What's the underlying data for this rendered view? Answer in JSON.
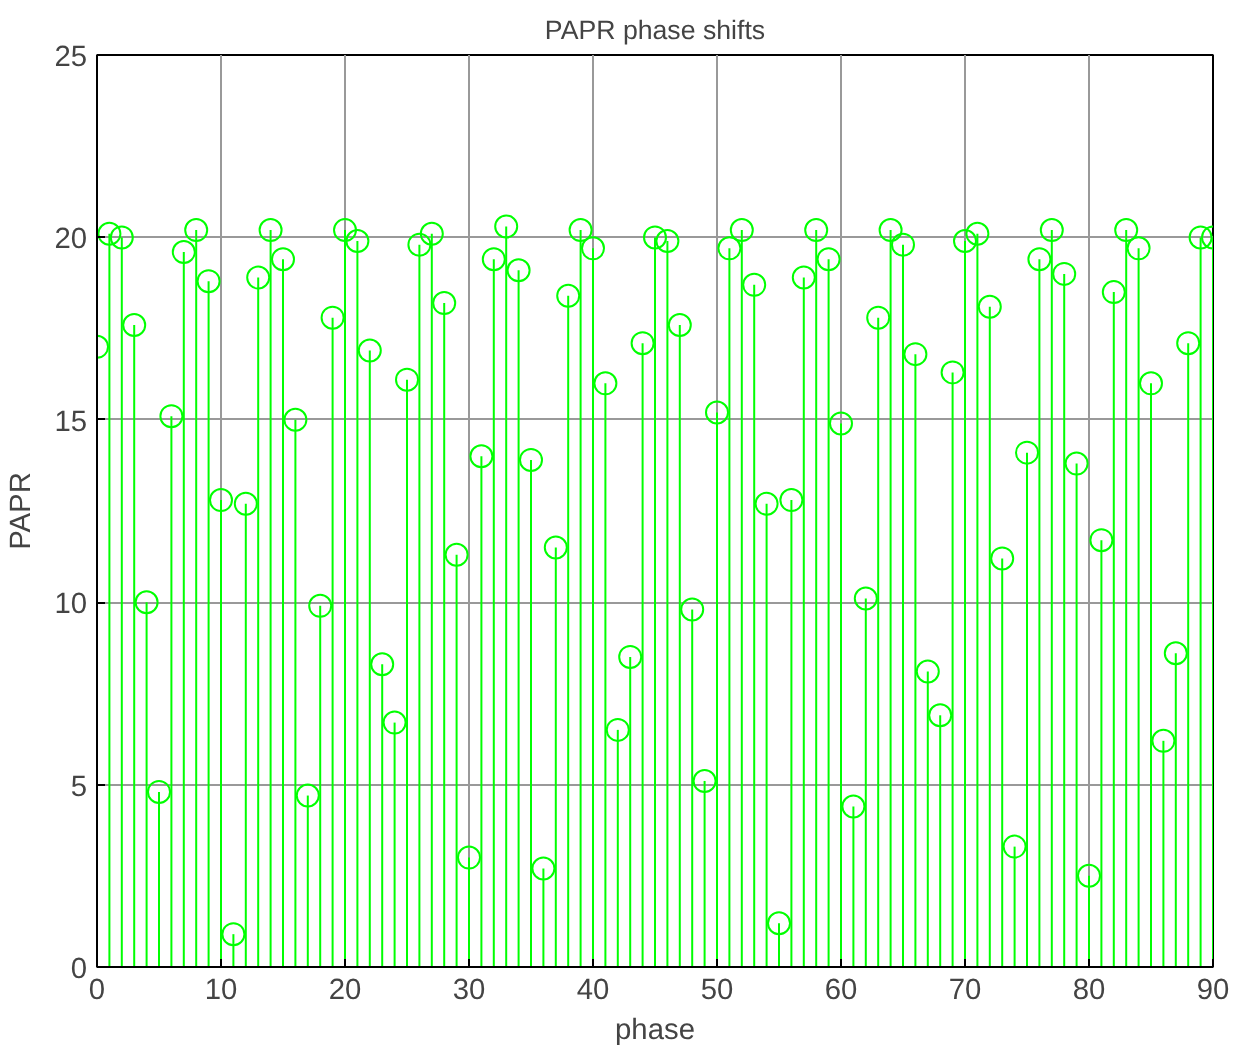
{
  "chart_data": {
    "type": "lollipop",
    "title": "PAPR phase shifts",
    "xlabel": "phase",
    "ylabel": "PAPR",
    "x": [
      0,
      1,
      2,
      3,
      4,
      5,
      6,
      7,
      8,
      9,
      10,
      11,
      12,
      13,
      14,
      15,
      16,
      17,
      18,
      19,
      20,
      21,
      22,
      23,
      24,
      25,
      26,
      27,
      28,
      29,
      30,
      31,
      32,
      33,
      34,
      35,
      36,
      37,
      38,
      39,
      40,
      41,
      42,
      43,
      44,
      45,
      46,
      47,
      48,
      49,
      50,
      51,
      52,
      53,
      54,
      55,
      56,
      57,
      58,
      59,
      60,
      61,
      62,
      63,
      64,
      65,
      66,
      67,
      68,
      69,
      70,
      71,
      72,
      73,
      74,
      75,
      76,
      77,
      78,
      79,
      80,
      81,
      82,
      83,
      84,
      85,
      86,
      87,
      88,
      89,
      90
    ],
    "values": [
      17.0,
      20.1,
      20.0,
      17.6,
      10.0,
      4.8,
      15.1,
      19.6,
      20.2,
      18.8,
      12.8,
      0.9,
      12.7,
      18.9,
      20.2,
      19.4,
      15.0,
      4.7,
      9.9,
      17.8,
      20.2,
      19.9,
      16.9,
      8.3,
      6.7,
      16.1,
      19.8,
      20.1,
      18.2,
      11.3,
      3.0,
      14.0,
      19.4,
      20.3,
      19.1,
      13.9,
      2.7,
      11.5,
      18.4,
      20.2,
      19.7,
      16.0,
      6.5,
      8.5,
      17.1,
      20.0,
      19.9,
      17.6,
      9.8,
      5.1,
      15.2,
      19.7,
      20.2,
      18.7,
      12.7,
      1.2,
      12.8,
      18.9,
      20.2,
      19.4,
      14.9,
      4.4,
      10.1,
      17.8,
      20.2,
      19.8,
      16.8,
      8.1,
      6.9,
      16.3,
      19.9,
      20.1,
      18.1,
      11.2,
      3.3,
      14.1,
      19.4,
      20.2,
      19.0,
      13.8,
      2.5,
      11.7,
      18.5,
      20.2,
      19.7,
      16.0,
      6.2,
      8.6,
      17.1,
      20.0,
      20.0
    ],
    "color": "#00ff00",
    "marker": "circle",
    "xlim": [
      0,
      90
    ],
    "ylim": [
      0,
      25
    ],
    "xticks": [
      0,
      10,
      20,
      30,
      40,
      50,
      60,
      70,
      80,
      90
    ],
    "yticks": [
      0,
      5,
      10,
      15,
      20,
      25
    ],
    "grid": true
  }
}
